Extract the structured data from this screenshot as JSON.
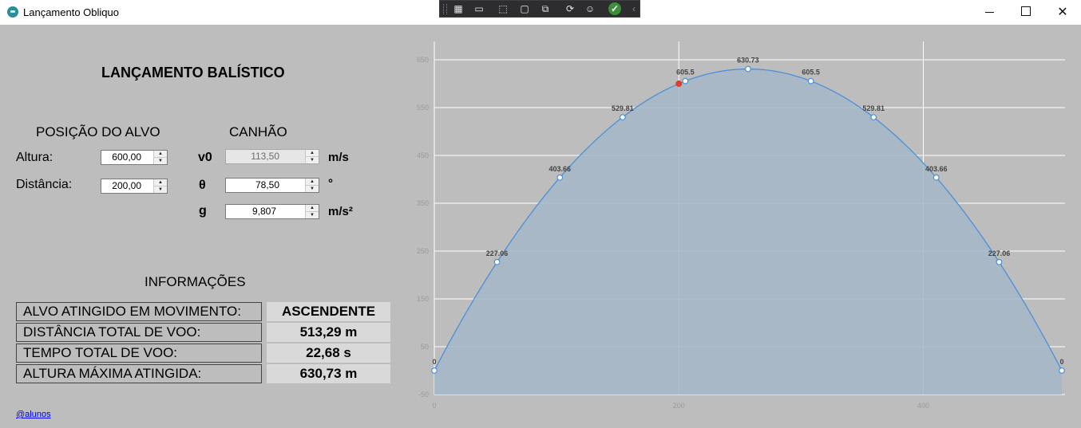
{
  "window": {
    "title": "Lançamento Obliquo",
    "minimize_icon": "minimize-icon",
    "maximize_icon": "maximize-icon",
    "close_label": "✕"
  },
  "debug_toolbar": {
    "icons": [
      "live-visual-tree-icon",
      "record-icon",
      "select-element-icon",
      "display-layout-adorners-icon",
      "track-focused-element-icon",
      "binding-failures-icon",
      "accessibility-icon",
      "checkmark-icon",
      "collapse-icon"
    ]
  },
  "page_title": "LANÇAMENTO BALÍSTICO",
  "target": {
    "heading": "POSIÇÃO DO ALVO",
    "altura_label": "Altura:",
    "altura_value": "600,00",
    "distancia_label": "Distância:",
    "distancia_value": "200,00"
  },
  "cannon": {
    "heading": "CANHÃO",
    "v0_label": "v0",
    "v0_value": "113,50",
    "v0_unit": "m/s",
    "theta_label": "θ",
    "theta_value": "78,50",
    "theta_unit": "°",
    "g_label": "g",
    "g_value": "9,807",
    "g_unit": "m/s²"
  },
  "info": {
    "heading": "INFORMAÇÕES",
    "rows": [
      {
        "label": "ALVO ATINGIDO EM MOVIMENTO:",
        "value": "ASCENDENTE"
      },
      {
        "label": "DISTÂNCIA TOTAL DE VOO:",
        "value": "513,29 m"
      },
      {
        "label": "TEMPO TOTAL DE VOO:",
        "value": "22,68 s"
      },
      {
        "label": "ALTURA MÁXIMA ATINGIDA:",
        "value": "630,73 m"
      }
    ]
  },
  "footer_link": "@alunos",
  "chart_data": {
    "type": "area",
    "xlim": [
      0,
      513.29
    ],
    "ylim": [
      -50,
      680
    ],
    "x_ticks": [
      0,
      200,
      400
    ],
    "y_ticks": [
      -50,
      50,
      150,
      250,
      350,
      450,
      550,
      650
    ],
    "x_tick_labels": [
      "0",
      "200",
      "400"
    ],
    "y_tick_labels": [
      "-50",
      "50",
      "150",
      "250",
      "350",
      "450",
      "550",
      "650"
    ],
    "grid": true,
    "colors": {
      "line": "#4a90d9",
      "fill": "#a6b7c8",
      "target": "#e33b2e",
      "grid": "#ffffff",
      "tick": "#9a9a9a"
    },
    "series": [
      {
        "points": [
          {
            "x": 0,
            "y": 0,
            "label": "0"
          },
          {
            "x": 51.3,
            "y": 227.06,
            "label": "227.06"
          },
          {
            "x": 102.7,
            "y": 403.66,
            "label": "403.66"
          },
          {
            "x": 154.0,
            "y": 529.81,
            "label": "529.81"
          },
          {
            "x": 205.3,
            "y": 605.5,
            "label": "605.5"
          },
          {
            "x": 256.6,
            "y": 630.73,
            "label": "630.73"
          },
          {
            "x": 308.0,
            "y": 605.5,
            "label": "605.5"
          },
          {
            "x": 359.3,
            "y": 529.81,
            "label": "529.81"
          },
          {
            "x": 410.6,
            "y": 403.66,
            "label": "403.66"
          },
          {
            "x": 462.0,
            "y": 227.06,
            "label": "227.06"
          },
          {
            "x": 513.29,
            "y": 0,
            "label": "0"
          }
        ]
      }
    ],
    "target_point": {
      "x": 200,
      "y": 600
    }
  }
}
